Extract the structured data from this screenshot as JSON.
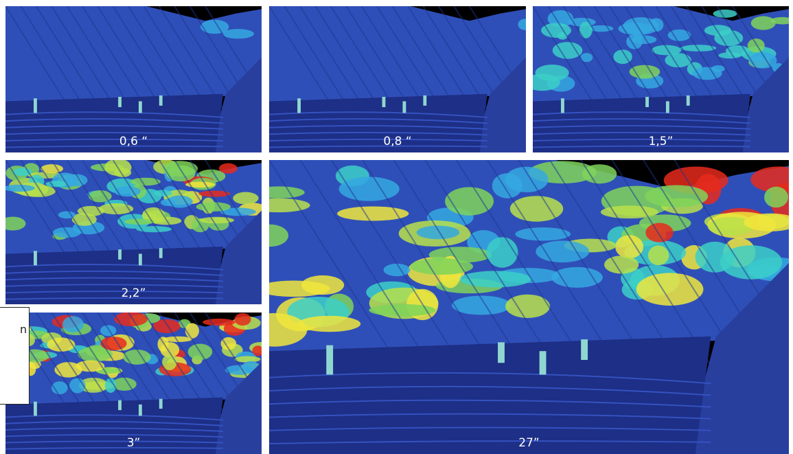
{
  "panels": [
    {
      "label": "0,6 “"
    },
    {
      "label": "0,8 “"
    },
    {
      "label": "1,5”"
    },
    {
      "label": "2,2”"
    },
    {
      "label": "3”"
    },
    {
      "label": "27”"
    }
  ],
  "sidebox": {
    "text": "n"
  }
}
